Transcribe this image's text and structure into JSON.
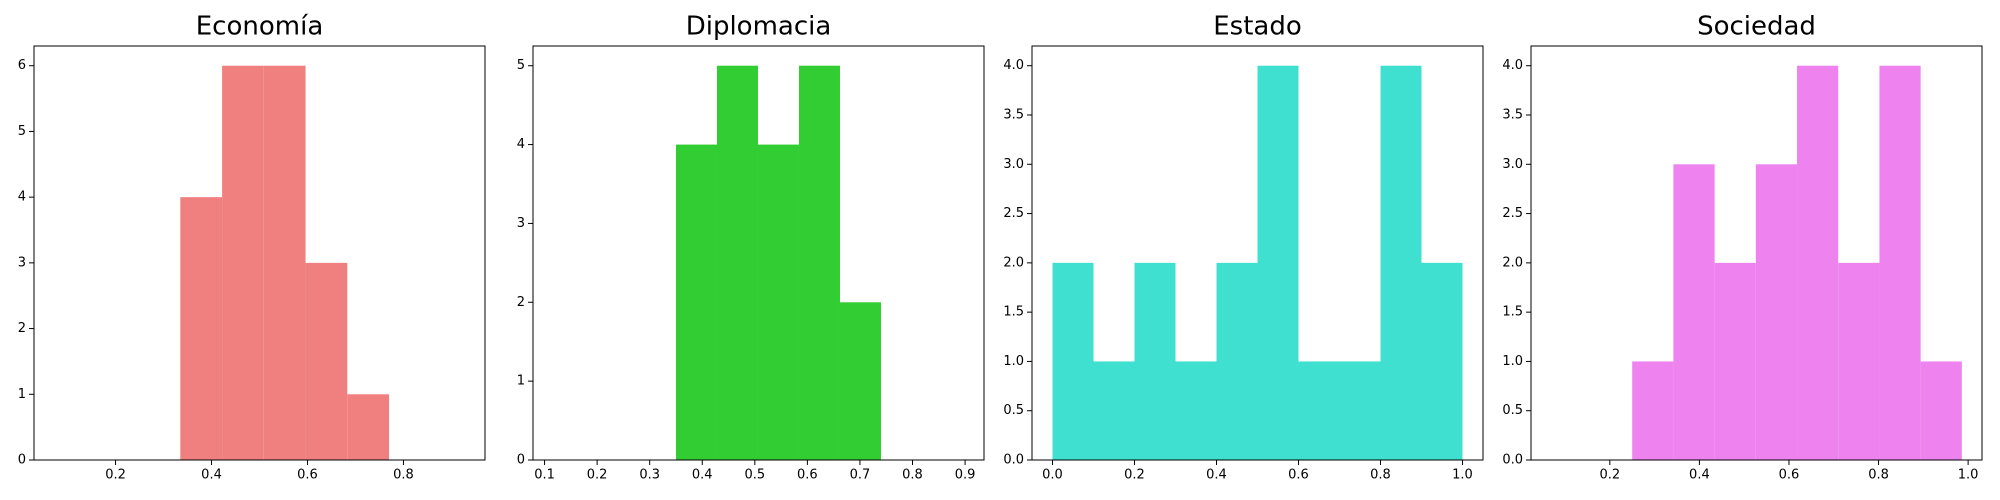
{
  "chart_data": [
    {
      "type": "histogram",
      "title": "Economía",
      "color": "#f08080",
      "bins": [
        0.335,
        0.422,
        0.509,
        0.596,
        0.683,
        0.77
      ],
      "values": [
        4,
        6,
        6,
        3,
        1
      ],
      "xlim": [
        0.03,
        0.97
      ],
      "ylim": [
        0,
        6.3
      ],
      "xticks": [
        0.2,
        0.4,
        0.6,
        0.8
      ],
      "yticks": [
        0,
        1,
        2,
        3,
        4,
        5,
        6
      ]
    },
    {
      "type": "histogram",
      "title": "Diplomacia",
      "color": "#32cd32",
      "bins": [
        0.35,
        0.428,
        0.506,
        0.584,
        0.662,
        0.74
      ],
      "values": [
        4,
        5,
        4,
        5,
        2
      ],
      "xlim": [
        0.078,
        0.936
      ],
      "ylim": [
        0,
        5.25
      ],
      "xticks": [
        0.1,
        0.2,
        0.3,
        0.4,
        0.5,
        0.6,
        0.7,
        0.8,
        0.9
      ],
      "yticks": [
        0,
        1,
        2,
        3,
        4,
        5
      ]
    },
    {
      "type": "histogram",
      "title": "Estado",
      "color": "#40e0d0",
      "bins": [
        0,
        0.1,
        0.2,
        0.3,
        0.4,
        0.5,
        0.6,
        0.7,
        0.8,
        0.9,
        1
      ],
      "values": [
        2,
        1,
        2,
        1,
        2,
        4,
        1,
        1,
        4,
        2
      ],
      "xlim": [
        -0.05,
        1.05
      ],
      "ylim": [
        0,
        4.2
      ],
      "xticks": [
        {
          "value": 0,
          "label": "0.0"
        },
        0.2,
        0.4,
        0.6,
        0.8,
        {
          "value": 1,
          "label": "1.0"
        }
      ],
      "yticks": [
        {
          "value": 0,
          "label": "0.0"
        },
        0.5,
        {
          "value": 1,
          "label": "1.0"
        },
        1.5,
        {
          "value": 2,
          "label": "2.0"
        },
        2.5,
        {
          "value": 3,
          "label": "3.0"
        },
        3.5,
        {
          "value": 4,
          "label": "4.0"
        }
      ]
    },
    {
      "type": "histogram",
      "title": "Sociedad",
      "color": "#ee82ee",
      "bins": [
        0.25,
        0.342,
        0.434,
        0.526,
        0.618,
        0.71,
        0.802,
        0.894,
        0.986
      ],
      "values": [
        1,
        3,
        2,
        3,
        4,
        2,
        4,
        1
      ],
      "xlim": [
        0.024,
        1.031
      ],
      "ylim": [
        0,
        4.2
      ],
      "xticks": [
        0.2,
        0.4,
        0.6,
        0.8,
        {
          "value": 1,
          "label": "1.0"
        }
      ],
      "yticks": [
        {
          "value": 0,
          "label": "0.0"
        },
        0.5,
        {
          "value": 1,
          "label": "1.0"
        },
        1.5,
        {
          "value": 2,
          "label": "2.0"
        },
        2.5,
        {
          "value": 3,
          "label": "3.0"
        },
        3.5,
        {
          "value": 4,
          "label": "4.0"
        }
      ]
    }
  ]
}
